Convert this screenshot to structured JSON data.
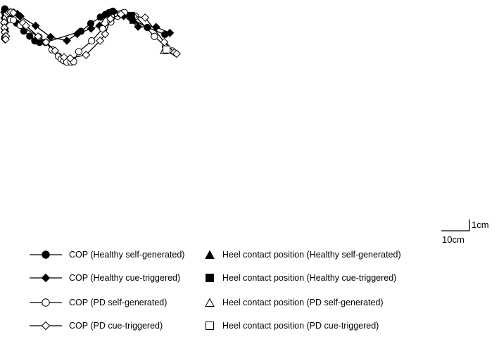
{
  "chart_data": {
    "type": "line",
    "title": "",
    "xlabel": "",
    "ylabel": "",
    "units": "cm",
    "note": "",
    "scale_bar": {
      "horizontal_cm": 10,
      "vertical_cm": 1,
      "horizontal_label": "10cm",
      "vertical_label": "1cm"
    },
    "series": [
      {
        "name": "COP (Healthy self-generated)",
        "key": "cop_healthy_self",
        "marker": "circle",
        "fill": "#000000",
        "points": [
          [
            -2.05,
            2.35
          ],
          [
            -2.04,
            2.25
          ],
          [
            -2.03,
            2.1
          ],
          [
            -2.02,
            1.93
          ],
          [
            -2.01,
            1.75
          ],
          [
            -2.0,
            1.58
          ],
          [
            -1.99,
            1.4
          ],
          [
            -1.98,
            1.2
          ],
          [
            -1.95,
            0.99
          ],
          [
            -1.93,
            0.79
          ],
          [
            -1.9,
            0.59
          ],
          [
            -1.85,
            0.39
          ],
          [
            -1.8,
            0.19
          ],
          [
            -1.74,
            0.02
          ],
          [
            -1.65,
            -0.13
          ],
          [
            -1.45,
            -0.32
          ],
          [
            -1.1,
            -0.55
          ],
          [
            -0.6,
            -0.72
          ],
          [
            0.5,
            -1.33
          ],
          [
            2.1,
            -2.68
          ],
          [
            4.7,
            -5.53
          ],
          [
            6.8,
            -7.37
          ],
          [
            8.6,
            -9.05
          ],
          [
            10.3,
            -9.58
          ],
          [
            12.4,
            -9.53
          ],
          [
            25.0,
            -5.63
          ],
          [
            28.5,
            -2.83
          ],
          [
            31.9,
            -0.59
          ],
          [
            33.7,
            0.36
          ],
          [
            35.0,
            1.04
          ],
          [
            36.3,
            1.55
          ],
          [
            39.7,
            0.79
          ],
          [
            43.0,
            -1.17
          ],
          [
            48.6,
            -4.25
          ],
          [
            54.8,
            -6.76
          ]
        ]
      },
      {
        "name": "COP (Healthy cue-triggered)",
        "key": "cop_healthy_cue",
        "marker": "diamond",
        "fill": "#000000",
        "points": [
          [
            -2.2,
            1.2
          ],
          [
            -2.2,
            -0.9
          ],
          [
            -2.15,
            -2.75
          ],
          [
            -2.05,
            -4.73
          ],
          [
            -1.95,
            -5.71
          ],
          [
            -1.4,
            0.19
          ],
          [
            -0.4,
            0.92
          ],
          [
            1.1,
            1.1
          ],
          [
            2.4,
            0.55
          ],
          [
            3.5,
            -0.27
          ],
          [
            8.9,
            -3.67
          ],
          [
            14.2,
            -7.67
          ],
          [
            20.0,
            -8.95
          ],
          [
            23.7,
            -6.54
          ],
          [
            28.6,
            -4.67
          ],
          [
            31.6,
            -3.62
          ],
          [
            34.6,
            0.79
          ],
          [
            37.5,
            0.62
          ],
          [
            40.2,
            -0.21
          ],
          [
            45.3,
            -3.98
          ],
          [
            51.7,
            -4.11
          ],
          [
            56.6,
            -6.2
          ]
        ]
      },
      {
        "name": "COP (PD self-generated)",
        "key": "cop_pd_self",
        "marker": "circle",
        "fill": "#ffffff",
        "points": [
          [
            -1.85,
            -0.66
          ],
          [
            -1.8,
            -0.83
          ],
          [
            -1.7,
            -0.96
          ],
          [
            0.0,
            -1.5
          ],
          [
            1.0,
            -1.64
          ],
          [
            3.5,
            -3.51
          ],
          [
            10.1,
            -7.64
          ],
          [
            12.5,
            -9.53
          ],
          [
            14.7,
            -12.18
          ],
          [
            17.0,
            -14.5
          ],
          [
            18.0,
            -15.44
          ],
          [
            19.0,
            -16.13
          ],
          [
            20.0,
            -16.6
          ],
          [
            21.5,
            -16.6
          ],
          [
            22.4,
            -16.4
          ],
          [
            24.2,
            -12.86
          ],
          [
            28.8,
            -9.04
          ],
          [
            32.7,
            -4.75
          ],
          [
            35.6,
            -2.31
          ],
          [
            38.0,
            -0.27
          ],
          [
            39.0,
            0.6
          ],
          [
            40.4,
            1.07
          ],
          [
            44.4,
            -0.34
          ],
          [
            51.1,
            -7.44
          ],
          [
            55.0,
            -10.95
          ],
          [
            57.4,
            -12.6
          ]
        ]
      },
      {
        "name": "COP (PD cue-triggered)",
        "key": "cop_pd_cue",
        "marker": "diamond",
        "fill": "#ffffff",
        "points": [
          [
            -2.25,
            -2.48
          ],
          [
            -2.2,
            -4.33
          ],
          [
            -2.1,
            -6.0
          ],
          [
            -2.0,
            -7.54
          ],
          [
            -1.95,
            -8.11
          ],
          [
            -2.0,
            -8.45
          ],
          [
            -1.6,
            -7.37
          ],
          [
            -1.75,
            -8.45
          ],
          [
            -1.4,
            0.53
          ],
          [
            -0.6,
            1.06
          ],
          [
            0.1,
            1.2
          ],
          [
            1.0,
            0.93
          ],
          [
            4.4,
            -2.64
          ],
          [
            5.5,
            -3.65
          ],
          [
            9.8,
            -7.47
          ],
          [
            12.6,
            -9.49
          ],
          [
            15.8,
            -12.52
          ],
          [
            19.0,
            -14.85
          ],
          [
            21.2,
            -15.21
          ],
          [
            26.8,
            -14.01
          ],
          [
            31.8,
            -8.97
          ],
          [
            33.6,
            -6.61
          ],
          [
            35.5,
            -1.17
          ],
          [
            39.2,
            0.45
          ],
          [
            43.7,
            -0.34
          ],
          [
            47.8,
            -0.75
          ],
          [
            54.6,
            -9.44
          ],
          [
            58.2,
            -13.14
          ],
          [
            59.0,
            -13.61
          ]
        ]
      }
    ],
    "heel_contacts": [
      {
        "name": "Heel contact position (Healthy self-generated)",
        "key": "heel_healthy_self",
        "marker": "triangle",
        "fill": "#000000",
        "points": [
          [
            43.7,
            -1.68
          ]
        ]
      },
      {
        "name": "Heel contact position (Healthy cue-triggered)",
        "key": "heel_healthy_cue",
        "marker": "square",
        "fill": "#000000",
        "points": [
          [
            42.8,
            -0.1
          ]
        ]
      },
      {
        "name": "Heel contact position (PD self-generated)",
        "key": "heel_pd_self",
        "marker": "triangle",
        "fill": "#ffffff",
        "points": [
          [
            54.6,
            -12.45
          ]
        ]
      },
      {
        "name": "Heel contact position (PD cue-triggered)",
        "key": "heel_pd_cue",
        "marker": "square",
        "fill": "#ffffff",
        "points": [
          [
            55.4,
            -12.08
          ]
        ]
      }
    ]
  }
}
